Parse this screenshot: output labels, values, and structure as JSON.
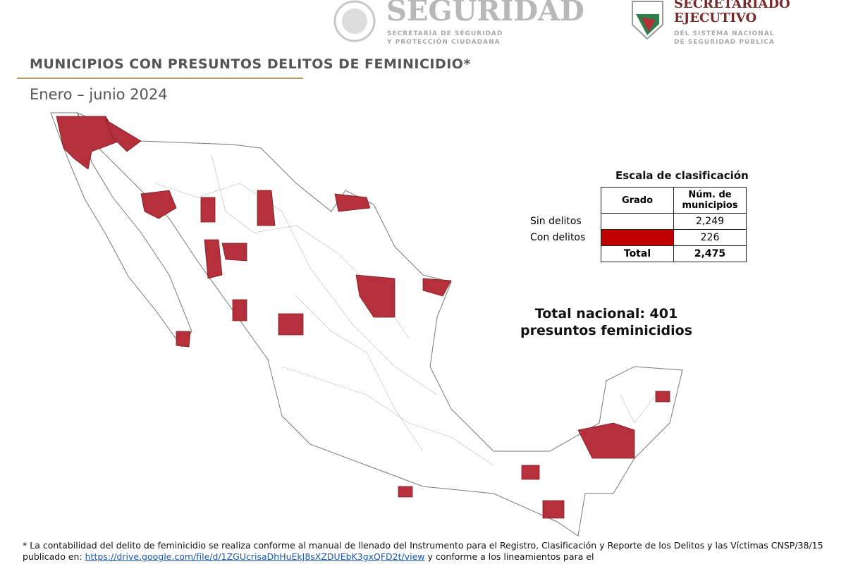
{
  "header": {
    "left_logo": {
      "name": "SEGURIDAD",
      "line1": "SECRETARÍA DE SEGURIDAD",
      "line2": "Y PROTECCIÓN CIUDADANA"
    },
    "right_logo": {
      "name1": "SECRETARIADO",
      "name2": "EJECUTIVO",
      "line1": "DEL SISTEMA NACIONAL",
      "line2": "DE SEGURIDAD PÚBLICA"
    }
  },
  "title": "MUNICIPIOS CON PRESUNTOS DELITOS DE FEMINICIDIO*",
  "subtitle": "Enero – junio 2024",
  "legend": {
    "title": "Escala de clasificación",
    "headers": [
      "Grado",
      "Núm. de municipios"
    ],
    "rows": [
      {
        "label": "Sin delitos",
        "count": "2,249"
      },
      {
        "label": "Con delitos",
        "count": "226"
      }
    ],
    "total": {
      "label": "Total",
      "count": "2,475"
    }
  },
  "total_note": {
    "line1": "Total nacional: 401",
    "line2": "presuntos feminicidios"
  },
  "footnote": {
    "text1": "* La contabilidad del delito de feminicidio se realiza conforme al manual de llenado del Instrumento para el Registro, Clasificación y Reporte de los Delitos y las Víctimas CNSP/38/15 publicado en: ",
    "link": "https://drive.google.com/file/d/1ZGUcrisaDhHuEkJ8sXZDUEbK3gxQFD2t/view",
    "text2": " y conforme a los lineamientos para el"
  }
}
